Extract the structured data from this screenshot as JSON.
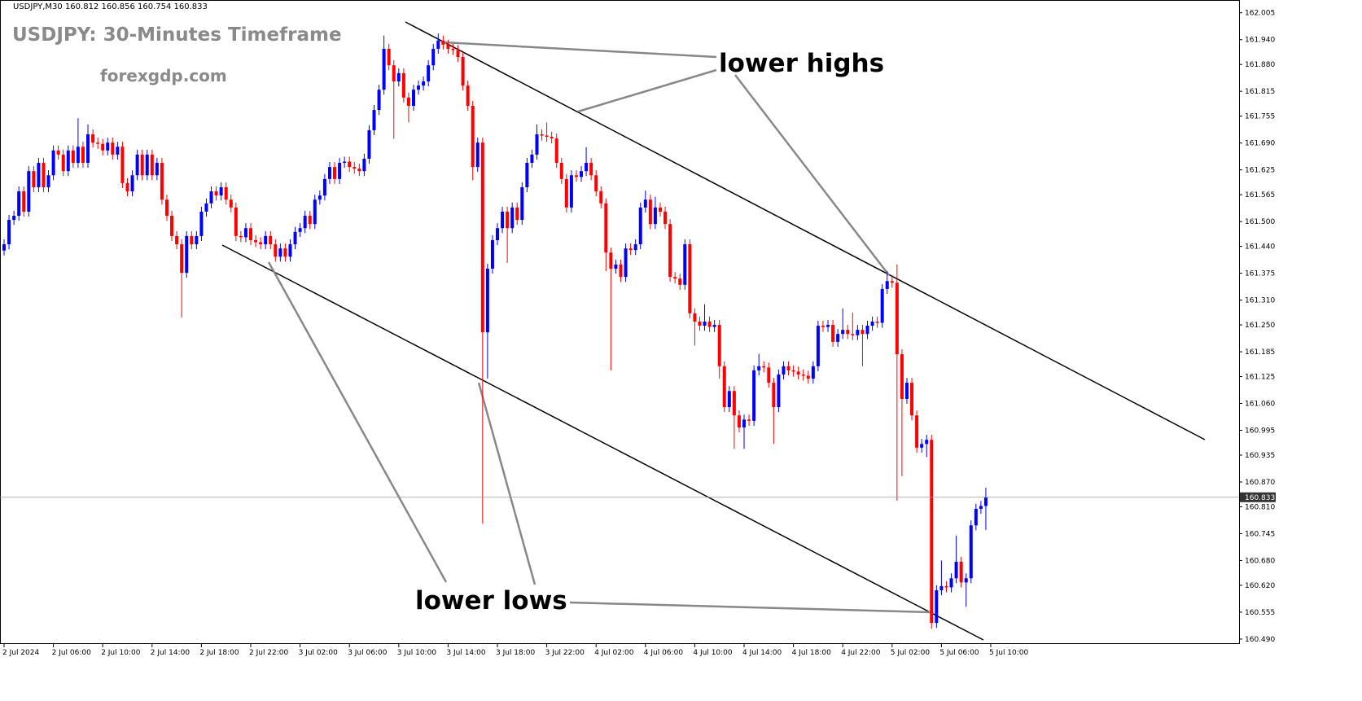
{
  "chart_data": {
    "type": "candlestick",
    "header": "USDJPY,M30  160.812 160.856 160.754 160.833",
    "title": "USDJPY: 30-Minutes Timeframe",
    "subtitle": "forexgdp.com",
    "annotations": [
      "lower highs",
      "lower lows"
    ],
    "up_color": "#0000ff",
    "down_color": "#ff0000",
    "last_price": 160.833,
    "xlim": [
      0,
      250
    ],
    "xticks": [
      {
        "value": 0,
        "label": "2 Jul 2024"
      },
      {
        "value": 10,
        "label": "2 Jul 06:00"
      },
      {
        "value": 20,
        "label": "2 Jul 10:00"
      },
      {
        "value": 30,
        "label": "2 Jul 14:00"
      },
      {
        "value": 40,
        "label": "2 Jul 18:00"
      },
      {
        "value": 50,
        "label": "2 Jul 22:00"
      },
      {
        "value": 60,
        "label": "3 Jul 02:00"
      },
      {
        "value": 70,
        "label": "3 Jul 06:00"
      },
      {
        "value": 80,
        "label": "3 Jul 10:00"
      },
      {
        "value": 90,
        "label": "3 Jul 14:00"
      },
      {
        "value": 100,
        "label": "3 Jul 18:00"
      },
      {
        "value": 110,
        "label": "3 Jul 22:00"
      },
      {
        "value": 120,
        "label": "4 Jul 02:00"
      },
      {
        "value": 130,
        "label": "4 Jul 06:00"
      },
      {
        "value": 140,
        "label": "4 Jul 10:00"
      },
      {
        "value": 150,
        "label": "4 Jul 14:00"
      },
      {
        "value": 160,
        "label": "4 Jul 18:00"
      },
      {
        "value": 170,
        "label": "4 Jul 22:00"
      },
      {
        "value": 180,
        "label": "5 Jul 02:00"
      },
      {
        "value": 190,
        "label": "5 Jul 06:00"
      },
      {
        "value": 200,
        "label": "5 Jul 10:00"
      }
    ],
    "ylim": [
      160.478,
      162.036
    ],
    "yticks": [
      162.005,
      {
        "value": 161.94,
        "label": "161.940"
      },
      {
        "value": 161.88,
        "label": "161.880"
      },
      161.815,
      161.755,
      {
        "value": 161.69,
        "label": "161.690"
      },
      161.625,
      161.565,
      {
        "value": 161.5,
        "label": "161.500"
      },
      {
        "value": 161.44,
        "label": "161.440"
      },
      161.375,
      {
        "value": 161.31,
        "label": "161.310"
      },
      {
        "value": 161.25,
        "label": "161.250"
      },
      161.185,
      161.125,
      {
        "value": 161.06,
        "label": "161.060"
      },
      160.995,
      160.935,
      {
        "value": 160.87,
        "label": "160.870"
      },
      {
        "value": 160.81,
        "label": "160.810"
      },
      160.745,
      {
        "value": 160.68,
        "label": "160.680"
      },
      {
        "value": 160.62,
        "label": "160.620"
      },
      160.555,
      {
        "value": 160.49,
        "label": "160.490"
      }
    ],
    "open": [
      161.43,
      161.445,
      161.504,
      161.514,
      161.573,
      161.524,
      161.622,
      161.583,
      161.642,
      161.583,
      161.612,
      161.672,
      161.662,
      161.622,
      161.672,
      161.642,
      161.681,
      161.642,
      161.711,
      161.691,
      161.688,
      161.672,
      161.691,
      161.662,
      161.681,
      161.593,
      161.573,
      161.612,
      161.662,
      161.612,
      161.662,
      161.612,
      161.642,
      161.553,
      161.514,
      161.465,
      161.445,
      161.376,
      161.465,
      161.445,
      161.465,
      161.524,
      161.544,
      161.573,
      161.563,
      161.583,
      161.553,
      161.534,
      161.465,
      161.462,
      161.484,
      161.455,
      161.45,
      161.445,
      161.465,
      161.445,
      161.415,
      161.435,
      161.415,
      161.445,
      161.475,
      161.484,
      161.514,
      161.494,
      161.553,
      161.563,
      161.603,
      161.632,
      161.603,
      161.642,
      161.645,
      161.632,
      161.628,
      161.622,
      161.652,
      161.721,
      161.77,
      161.819,
      161.918,
      161.878,
      161.839,
      161.859,
      161.8,
      161.78,
      161.819,
      161.829,
      161.839,
      161.878,
      161.918,
      161.938,
      161.928,
      161.918,
      161.915,
      161.898,
      161.829,
      161.78,
      161.632,
      161.691,
      161.232,
      161.386,
      161.455,
      161.484,
      161.524,
      161.484,
      161.534,
      161.504,
      161.583,
      161.642,
      161.662,
      161.711,
      161.708,
      161.705,
      161.701,
      161.642,
      161.603,
      161.534,
      161.612,
      161.608,
      161.622,
      161.642,
      161.612,
      161.573,
      161.544,
      161.425,
      161.386,
      161.396,
      161.366,
      161.435,
      161.431,
      161.445,
      161.534,
      161.553,
      161.494,
      161.534,
      161.524,
      161.494,
      161.366,
      161.362,
      161.347,
      161.445,
      161.278,
      161.258,
      161.248,
      161.258,
      161.245,
      161.25,
      161.15,
      161.051,
      161.09,
      161.031,
      161.002,
      161.021,
      161.018,
      161.14,
      161.15,
      161.147,
      161.11,
      161.051,
      161.13,
      161.15,
      161.14,
      161.137,
      161.13,
      161.127,
      161.12,
      161.15,
      161.248,
      161.245,
      161.25,
      161.209,
      161.228,
      161.238,
      161.228,
      161.225,
      161.238,
      161.228,
      161.248,
      161.258,
      161.255,
      161.337,
      161.356,
      161.352,
      161.179,
      161.071,
      161.11,
      161.031,
      160.953,
      160.962,
      160.972,
      160.529,
      160.608,
      160.618,
      160.615,
      160.637,
      160.677,
      160.627,
      160.637,
      160.765,
      160.805,
      160.812
    ],
    "high": [
      161.457,
      161.516,
      161.526,
      161.585,
      161.585,
      161.634,
      161.634,
      161.654,
      161.654,
      161.624,
      161.684,
      161.684,
      161.674,
      161.684,
      161.684,
      161.75,
      161.693,
      161.735,
      161.723,
      161.703,
      161.7,
      161.703,
      161.703,
      161.693,
      161.693,
      161.605,
      161.624,
      161.674,
      161.674,
      161.674,
      161.674,
      161.654,
      161.654,
      161.565,
      161.526,
      161.477,
      161.457,
      161.477,
      161.477,
      161.477,
      161.536,
      161.556,
      161.585,
      161.585,
      161.595,
      161.595,
      161.565,
      161.546,
      161.477,
      161.496,
      161.496,
      161.467,
      161.462,
      161.477,
      161.477,
      161.457,
      161.447,
      161.447,
      161.457,
      161.487,
      161.496,
      161.526,
      161.526,
      161.565,
      161.575,
      161.615,
      161.644,
      161.644,
      161.654,
      161.657,
      161.657,
      161.644,
      161.64,
      161.664,
      161.733,
      161.782,
      161.831,
      161.95,
      161.93,
      161.89,
      161.871,
      161.871,
      161.812,
      161.831,
      161.841,
      161.851,
      161.89,
      161.93,
      161.955,
      161.95,
      161.94,
      161.93,
      161.927,
      161.91,
      161.841,
      161.792,
      161.703,
      161.703,
      161.398,
      161.467,
      161.496,
      161.536,
      161.536,
      161.546,
      161.546,
      161.595,
      161.654,
      161.674,
      161.735,
      161.723,
      161.74,
      161.717,
      161.713,
      161.654,
      161.615,
      161.624,
      161.624,
      161.634,
      161.68,
      161.654,
      161.624,
      161.585,
      161.556,
      161.437,
      161.408,
      161.408,
      161.447,
      161.447,
      161.457,
      161.546,
      161.575,
      161.565,
      161.56,
      161.546,
      161.536,
      161.506,
      161.378,
      161.374,
      161.457,
      161.457,
      161.29,
      161.27,
      161.3,
      161.27,
      161.262,
      161.262,
      161.162,
      161.102,
      161.102,
      161.043,
      161.033,
      161.033,
      161.152,
      161.18,
      161.162,
      161.159,
      161.122,
      161.142,
      161.162,
      161.162,
      161.152,
      161.149,
      161.142,
      161.139,
      161.162,
      161.26,
      161.26,
      161.262,
      161.262,
      161.24,
      161.29,
      161.25,
      161.28,
      161.25,
      161.25,
      161.26,
      161.27,
      161.27,
      161.349,
      161.38,
      161.37,
      161.396,
      161.191,
      161.122,
      161.122,
      161.043,
      160.974,
      160.984,
      160.984,
      160.62,
      160.68,
      160.63,
      160.649,
      160.74,
      160.689,
      160.649,
      160.777,
      160.817,
      160.824,
      160.856
    ],
    "low": [
      161.418,
      161.433,
      161.492,
      161.502,
      161.512,
      161.512,
      161.571,
      161.571,
      161.571,
      161.571,
      161.6,
      161.65,
      161.61,
      161.61,
      161.63,
      161.63,
      161.63,
      161.63,
      161.679,
      161.676,
      161.66,
      161.66,
      161.65,
      161.65,
      161.581,
      161.561,
      161.561,
      161.6,
      161.6,
      161.6,
      161.6,
      161.6,
      161.541,
      161.502,
      161.453,
      161.433,
      161.268,
      161.364,
      161.433,
      161.433,
      161.453,
      161.512,
      161.532,
      161.551,
      161.551,
      161.541,
      161.522,
      161.453,
      161.45,
      161.45,
      161.443,
      161.438,
      161.433,
      161.433,
      161.433,
      161.403,
      161.403,
      161.403,
      161.403,
      161.433,
      161.463,
      161.472,
      161.482,
      161.482,
      161.541,
      161.551,
      161.591,
      161.591,
      161.591,
      161.63,
      161.62,
      161.616,
      161.61,
      161.61,
      161.64,
      161.709,
      161.758,
      161.807,
      161.866,
      161.7,
      161.827,
      161.788,
      161.74,
      161.768,
      161.807,
      161.817,
      161.827,
      161.866,
      161.906,
      161.916,
      161.906,
      161.903,
      161.886,
      161.817,
      161.768,
      161.6,
      161.62,
      160.769,
      161.12,
      161.374,
      161.443,
      161.472,
      161.4,
      161.472,
      161.492,
      161.492,
      161.571,
      161.63,
      161.65,
      161.696,
      161.693,
      161.689,
      161.63,
      161.591,
      161.522,
      161.522,
      161.596,
      161.596,
      161.61,
      161.6,
      161.561,
      161.532,
      161.38,
      161.14,
      161.374,
      161.354,
      161.354,
      161.419,
      161.419,
      161.433,
      161.522,
      161.482,
      161.482,
      161.512,
      161.482,
      161.354,
      161.35,
      161.335,
      161.335,
      161.266,
      161.2,
      161.236,
      161.236,
      161.233,
      161.233,
      161.12,
      161.039,
      161.039,
      160.95,
      160.99,
      160.95,
      161.006,
      161.006,
      161.128,
      161.135,
      161.098,
      160.962,
      161.039,
      161.118,
      161.128,
      161.125,
      161.118,
      161.115,
      161.108,
      161.108,
      161.138,
      161.233,
      161.233,
      161.197,
      161.197,
      161.216,
      161.216,
      161.213,
      161.213,
      161.15,
      161.216,
      161.236,
      161.243,
      161.243,
      161.325,
      161.34,
      160.825,
      160.884,
      161.059,
      161.019,
      160.941,
      160.941,
      160.93,
      160.515,
      160.517,
      160.596,
      160.603,
      160.603,
      160.625,
      160.615,
      160.568,
      160.625,
      160.753,
      160.793,
      160.754
    ],
    "close": [
      161.445,
      161.504,
      161.514,
      161.573,
      161.524,
      161.622,
      161.583,
      161.642,
      161.583,
      161.612,
      161.672,
      161.662,
      161.622,
      161.672,
      161.642,
      161.681,
      161.642,
      161.711,
      161.691,
      161.688,
      161.672,
      161.691,
      161.662,
      161.681,
      161.593,
      161.573,
      161.612,
      161.662,
      161.612,
      161.662,
      161.612,
      161.642,
      161.553,
      161.514,
      161.465,
      161.445,
      161.376,
      161.465,
      161.445,
      161.465,
      161.524,
      161.544,
      161.573,
      161.563,
      161.583,
      161.553,
      161.534,
      161.465,
      161.462,
      161.484,
      161.455,
      161.45,
      161.445,
      161.465,
      161.445,
      161.415,
      161.435,
      161.415,
      161.445,
      161.475,
      161.484,
      161.514,
      161.494,
      161.553,
      161.563,
      161.603,
      161.632,
      161.603,
      161.642,
      161.645,
      161.632,
      161.628,
      161.622,
      161.652,
      161.721,
      161.77,
      161.819,
      161.918,
      161.878,
      161.839,
      161.859,
      161.8,
      161.78,
      161.819,
      161.829,
      161.839,
      161.878,
      161.918,
      161.938,
      161.928,
      161.918,
      161.915,
      161.898,
      161.829,
      161.78,
      161.632,
      161.691,
      161.232,
      161.386,
      161.455,
      161.484,
      161.524,
      161.484,
      161.534,
      161.504,
      161.583,
      161.642,
      161.662,
      161.711,
      161.708,
      161.705,
      161.701,
      161.642,
      161.603,
      161.534,
      161.612,
      161.608,
      161.622,
      161.642,
      161.612,
      161.573,
      161.544,
      161.425,
      161.386,
      161.396,
      161.366,
      161.435,
      161.431,
      161.445,
      161.534,
      161.553,
      161.494,
      161.534,
      161.524,
      161.494,
      161.366,
      161.362,
      161.347,
      161.445,
      161.278,
      161.258,
      161.248,
      161.258,
      161.245,
      161.25,
      161.15,
      161.051,
      161.09,
      161.031,
      161.002,
      161.021,
      161.018,
      161.14,
      161.15,
      161.147,
      161.11,
      161.051,
      161.13,
      161.15,
      161.14,
      161.137,
      161.13,
      161.127,
      161.12,
      161.15,
      161.248,
      161.245,
      161.25,
      161.209,
      161.228,
      161.238,
      161.228,
      161.225,
      161.238,
      161.228,
      161.248,
      161.258,
      161.255,
      161.337,
      161.356,
      161.352,
      161.179,
      161.071,
      161.11,
      161.031,
      160.953,
      160.962,
      160.972,
      160.529,
      160.608,
      160.618,
      160.615,
      160.637,
      160.677,
      160.627,
      160.637,
      160.765,
      160.805,
      160.812,
      160.833
    ]
  }
}
